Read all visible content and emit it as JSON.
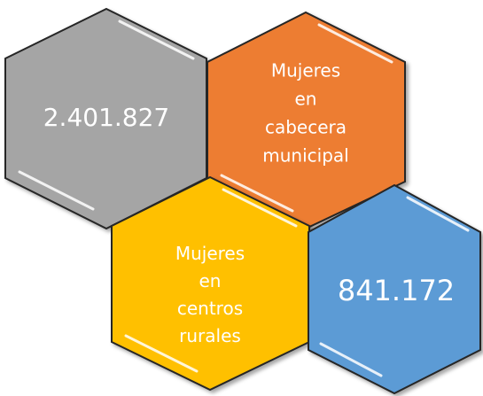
{
  "nodes": [
    {
      "lines": [
        "2.401.827"
      ]
    },
    {
      "lines": [
        "Mujeres",
        "en",
        "cabecera",
        "municipal"
      ]
    },
    {
      "lines": [
        "Mujeres",
        "en",
        "centros",
        "rurales"
      ]
    },
    {
      "lines": [
        "841.172"
      ]
    }
  ]
}
